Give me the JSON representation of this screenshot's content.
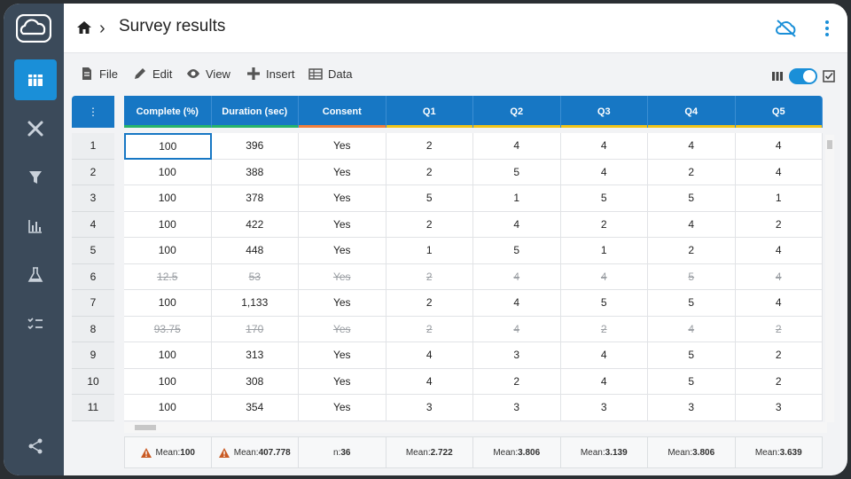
{
  "header": {
    "title": "Survey results"
  },
  "toolbar": {
    "file": "File",
    "edit": "Edit",
    "view": "View",
    "insert": "Insert",
    "data": "Data"
  },
  "columns": [
    {
      "label": "Complete (%)",
      "bar": "#27b36b"
    },
    {
      "label": "Duration (sec)",
      "bar": "#27b36b"
    },
    {
      "label": "Consent",
      "bar": "#f07f3c"
    },
    {
      "label": "Q1",
      "bar": "#f0c419"
    },
    {
      "label": "Q2",
      "bar": "#f0c419"
    },
    {
      "label": "Q3",
      "bar": "#f0c419"
    },
    {
      "label": "Q4",
      "bar": "#f0c419"
    },
    {
      "label": "Q5",
      "bar": "#f0c419"
    }
  ],
  "rows": [
    {
      "n": "1",
      "cells": [
        "100",
        "396",
        "Yes",
        "2",
        "4",
        "4",
        "4",
        "4"
      ],
      "excluded": false
    },
    {
      "n": "2",
      "cells": [
        "100",
        "388",
        "Yes",
        "2",
        "5",
        "4",
        "2",
        "4"
      ],
      "excluded": false
    },
    {
      "n": "3",
      "cells": [
        "100",
        "378",
        "Yes",
        "5",
        "1",
        "5",
        "5",
        "1"
      ],
      "excluded": false
    },
    {
      "n": "4",
      "cells": [
        "100",
        "422",
        "Yes",
        "2",
        "4",
        "2",
        "4",
        "2"
      ],
      "excluded": false
    },
    {
      "n": "5",
      "cells": [
        "100",
        "448",
        "Yes",
        "1",
        "5",
        "1",
        "2",
        "4"
      ],
      "excluded": false
    },
    {
      "n": "6",
      "cells": [
        "12.5",
        "53",
        "Yes",
        "2",
        "4",
        "4",
        "5",
        "4"
      ],
      "excluded": true
    },
    {
      "n": "7",
      "cells": [
        "100",
        "1,133",
        "Yes",
        "2",
        "4",
        "5",
        "5",
        "4"
      ],
      "excluded": false
    },
    {
      "n": "8",
      "cells": [
        "93.75",
        "170",
        "Yes",
        "2",
        "4",
        "2",
        "4",
        "2"
      ],
      "excluded": true
    },
    {
      "n": "9",
      "cells": [
        "100",
        "313",
        "Yes",
        "4",
        "3",
        "4",
        "5",
        "2"
      ],
      "excluded": false
    },
    {
      "n": "10",
      "cells": [
        "100",
        "308",
        "Yes",
        "4",
        "2",
        "4",
        "5",
        "2"
      ],
      "excluded": false
    },
    {
      "n": "11",
      "cells": [
        "100",
        "354",
        "Yes",
        "3",
        "3",
        "3",
        "3",
        "3"
      ],
      "excluded": false
    }
  ],
  "footer": [
    {
      "label": "Mean:",
      "value": "100",
      "warn": true
    },
    {
      "label": "Mean:",
      "value": "407.778",
      "warn": true
    },
    {
      "label": "n:",
      "value": "36",
      "warn": false
    },
    {
      "label": "Mean:",
      "value": "2.722",
      "warn": false
    },
    {
      "label": "Mean:",
      "value": "3.806",
      "warn": false
    },
    {
      "label": "Mean:",
      "value": "3.139",
      "warn": false
    },
    {
      "label": "Mean:",
      "value": "3.806",
      "warn": false
    },
    {
      "label": "Mean:",
      "value": "3.639",
      "warn": false
    }
  ],
  "colors": {
    "accent": "#1a8fd8",
    "header_bg": "#1777c4",
    "sidebar": "#3b4a5a"
  },
  "grid_menu_symbol": "⋮"
}
